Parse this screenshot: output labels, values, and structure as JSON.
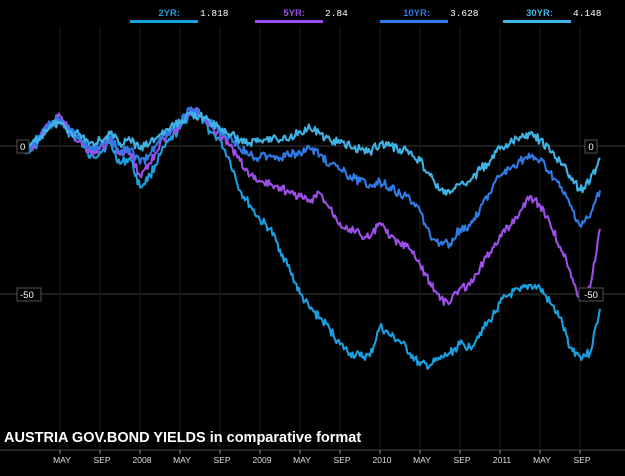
{
  "chart_data": {
    "type": "line",
    "title": "AUSTRIA GOV.BOND YIELDS in comparative format",
    "x_tick_labels": [
      "MAY",
      "SEP",
      "2008",
      "MAY",
      "SEP",
      "2009",
      "MAY",
      "SEP",
      "2010",
      "MAY",
      "SEP",
      "2011",
      "MAY",
      "SEP"
    ],
    "x_tick_positions": [
      "2007-05",
      "2007-09",
      "2008-01",
      "2008-05",
      "2008-09",
      "2009-01",
      "2009-05",
      "2009-09",
      "2010-01",
      "2010-05",
      "2010-09",
      "2011-01",
      "2011-05",
      "2011-09"
    ],
    "x_start": "2007-01",
    "x_end": "2011-12",
    "y_range": [
      -78,
      12
    ],
    "y_axis_labels_left": [
      0,
      -50
    ],
    "y_axis_labels_right": [
      0,
      -50
    ],
    "grid": true,
    "legend_placement": "top",
    "series": [
      {
        "name": "2YR:",
        "last_value": "1.818",
        "color": "#1a9fe0",
        "points": [
          [
            "2007-01",
            0
          ],
          [
            "2007-02",
            -2
          ],
          [
            "2007-03",
            2
          ],
          [
            "2007-04",
            7
          ],
          [
            "2007-05",
            9
          ],
          [
            "2007-06",
            4
          ],
          [
            "2007-07",
            2
          ],
          [
            "2007-08",
            -4
          ],
          [
            "2007-09",
            -2
          ],
          [
            "2007-10",
            1
          ],
          [
            "2007-11",
            -6
          ],
          [
            "2007-12",
            -4
          ],
          [
            "2008-01",
            -14
          ],
          [
            "2008-02",
            -10
          ],
          [
            "2008-03",
            -3
          ],
          [
            "2008-04",
            2
          ],
          [
            "2008-05",
            6
          ],
          [
            "2008-06",
            11
          ],
          [
            "2008-07",
            10
          ],
          [
            "2008-08",
            5
          ],
          [
            "2008-09",
            2
          ],
          [
            "2008-10",
            -5
          ],
          [
            "2008-11",
            -15
          ],
          [
            "2008-12",
            -20
          ],
          [
            "2009-01",
            -25
          ],
          [
            "2009-02",
            -28
          ],
          [
            "2009-03",
            -35
          ],
          [
            "2009-04",
            -42
          ],
          [
            "2009-05",
            -50
          ],
          [
            "2009-06",
            -55
          ],
          [
            "2009-07",
            -58
          ],
          [
            "2009-08",
            -62
          ],
          [
            "2009-09",
            -67
          ],
          [
            "2009-10",
            -70
          ],
          [
            "2009-11",
            -71
          ],
          [
            "2009-12",
            -71
          ],
          [
            "2010-01",
            -61
          ],
          [
            "2010-02",
            -64
          ],
          [
            "2010-03",
            -66
          ],
          [
            "2010-04",
            -70
          ],
          [
            "2010-05",
            -74
          ],
          [
            "2010-06",
            -74
          ],
          [
            "2010-07",
            -72
          ],
          [
            "2010-08",
            -70
          ],
          [
            "2010-09",
            -67
          ],
          [
            "2010-10",
            -68
          ],
          [
            "2010-11",
            -63
          ],
          [
            "2010-12",
            -59
          ],
          [
            "2011-01",
            -53
          ],
          [
            "2011-02",
            -50
          ],
          [
            "2011-03",
            -49
          ],
          [
            "2011-04",
            -47
          ],
          [
            "2011-05",
            -48
          ],
          [
            "2011-06",
            -53
          ],
          [
            "2011-07",
            -58
          ],
          [
            "2011-08",
            -68
          ],
          [
            "2011-09",
            -71
          ],
          [
            "2011-10",
            -70
          ],
          [
            "2011-11",
            -55
          ]
        ]
      },
      {
        "name": "5YR:",
        "last_value": "2.84",
        "color": "#9b4fe8",
        "points": [
          [
            "2007-01",
            0
          ],
          [
            "2007-02",
            -1
          ],
          [
            "2007-03",
            3
          ],
          [
            "2007-04",
            8
          ],
          [
            "2007-05",
            10
          ],
          [
            "2007-06",
            5
          ],
          [
            "2007-07",
            2
          ],
          [
            "2007-08",
            -2
          ],
          [
            "2007-09",
            -1
          ],
          [
            "2007-10",
            2
          ],
          [
            "2007-11",
            -3
          ],
          [
            "2007-12",
            -2
          ],
          [
            "2008-01",
            -10
          ],
          [
            "2008-02",
            -6
          ],
          [
            "2008-03",
            1
          ],
          [
            "2008-04",
            4
          ],
          [
            "2008-05",
            7
          ],
          [
            "2008-06",
            12
          ],
          [
            "2008-07",
            11
          ],
          [
            "2008-08",
            7
          ],
          [
            "2008-09",
            4
          ],
          [
            "2008-10",
            0
          ],
          [
            "2008-11",
            -5
          ],
          [
            "2008-12",
            -10
          ],
          [
            "2009-01",
            -12
          ],
          [
            "2009-02",
            -13
          ],
          [
            "2009-03",
            -14
          ],
          [
            "2009-04",
            -16
          ],
          [
            "2009-05",
            -17
          ],
          [
            "2009-06",
            -19
          ],
          [
            "2009-07",
            -16
          ],
          [
            "2009-08",
            -21
          ],
          [
            "2009-09",
            -26
          ],
          [
            "2009-10",
            -28
          ],
          [
            "2009-11",
            -30
          ],
          [
            "2009-12",
            -31
          ],
          [
            "2010-01",
            -26
          ],
          [
            "2010-02",
            -31
          ],
          [
            "2010-03",
            -33
          ],
          [
            "2010-04",
            -35
          ],
          [
            "2010-05",
            -40
          ],
          [
            "2010-06",
            -46
          ],
          [
            "2010-07",
            -52
          ],
          [
            "2010-08",
            -53
          ],
          [
            "2010-09",
            -48
          ],
          [
            "2010-10",
            -47
          ],
          [
            "2010-11",
            -41
          ],
          [
            "2010-12",
            -36
          ],
          [
            "2011-01",
            -30
          ],
          [
            "2011-02",
            -27
          ],
          [
            "2011-03",
            -22
          ],
          [
            "2011-04",
            -17
          ],
          [
            "2011-05",
            -20
          ],
          [
            "2011-06",
            -26
          ],
          [
            "2011-07",
            -34
          ],
          [
            "2011-08",
            -42
          ],
          [
            "2011-09",
            -52
          ],
          [
            "2011-10",
            -48
          ],
          [
            "2011-11",
            -28
          ]
        ]
      },
      {
        "name": "10YR:",
        "last_value": "3.628",
        "color": "#2f7be5",
        "points": [
          [
            "2007-01",
            0
          ],
          [
            "2007-02",
            -1
          ],
          [
            "2007-03",
            3
          ],
          [
            "2007-04",
            8
          ],
          [
            "2007-05",
            9
          ],
          [
            "2007-06",
            5
          ],
          [
            "2007-07",
            3
          ],
          [
            "2007-08",
            -1
          ],
          [
            "2007-09",
            0
          ],
          [
            "2007-10",
            3
          ],
          [
            "2007-11",
            -2
          ],
          [
            "2007-12",
            -1
          ],
          [
            "2008-01",
            -6
          ],
          [
            "2008-02",
            -3
          ],
          [
            "2008-03",
            3
          ],
          [
            "2008-04",
            5
          ],
          [
            "2008-05",
            8
          ],
          [
            "2008-06",
            12
          ],
          [
            "2008-07",
            11
          ],
          [
            "2008-08",
            8
          ],
          [
            "2008-09",
            5
          ],
          [
            "2008-10",
            3
          ],
          [
            "2008-11",
            -1
          ],
          [
            "2008-12",
            -3
          ],
          [
            "2009-01",
            -4
          ],
          [
            "2009-02",
            -3
          ],
          [
            "2009-03",
            -4
          ],
          [
            "2009-04",
            -3
          ],
          [
            "2009-05",
            -2
          ],
          [
            "2009-06",
            -1
          ],
          [
            "2009-07",
            -3
          ],
          [
            "2009-08",
            -6
          ],
          [
            "2009-09",
            -8
          ],
          [
            "2009-10",
            -10
          ],
          [
            "2009-11",
            -12
          ],
          [
            "2009-12",
            -13
          ],
          [
            "2010-01",
            -12
          ],
          [
            "2010-02",
            -14
          ],
          [
            "2010-03",
            -16
          ],
          [
            "2010-04",
            -18
          ],
          [
            "2010-05",
            -22
          ],
          [
            "2010-06",
            -30
          ],
          [
            "2010-07",
            -33
          ],
          [
            "2010-08",
            -33
          ],
          [
            "2010-09",
            -28
          ],
          [
            "2010-10",
            -27
          ],
          [
            "2010-11",
            -21
          ],
          [
            "2010-12",
            -16
          ],
          [
            "2011-01",
            -10
          ],
          [
            "2011-02",
            -8
          ],
          [
            "2011-03",
            -5
          ],
          [
            "2011-04",
            -4
          ],
          [
            "2011-05",
            -5
          ],
          [
            "2011-06",
            -9
          ],
          [
            "2011-07",
            -14
          ],
          [
            "2011-08",
            -20
          ],
          [
            "2011-09",
            -27
          ],
          [
            "2011-10",
            -24
          ],
          [
            "2011-11",
            -15
          ]
        ]
      },
      {
        "name": "30YR:",
        "last_value": "4.148",
        "color": "#3fb3e6",
        "points": [
          [
            "2007-01",
            0
          ],
          [
            "2007-02",
            0
          ],
          [
            "2007-03",
            3
          ],
          [
            "2007-04",
            7
          ],
          [
            "2007-05",
            8
          ],
          [
            "2007-06",
            5
          ],
          [
            "2007-07",
            4
          ],
          [
            "2007-08",
            1
          ],
          [
            "2007-09",
            2
          ],
          [
            "2007-10",
            4
          ],
          [
            "2007-11",
            1
          ],
          [
            "2007-12",
            2
          ],
          [
            "2008-01",
            -1
          ],
          [
            "2008-02",
            1
          ],
          [
            "2008-03",
            4
          ],
          [
            "2008-04",
            6
          ],
          [
            "2008-05",
            8
          ],
          [
            "2008-06",
            11
          ],
          [
            "2008-07",
            10
          ],
          [
            "2008-08",
            8
          ],
          [
            "2008-09",
            6
          ],
          [
            "2008-10",
            4
          ],
          [
            "2008-11",
            2
          ],
          [
            "2008-12",
            1
          ],
          [
            "2009-01",
            2
          ],
          [
            "2009-02",
            3
          ],
          [
            "2009-03",
            2
          ],
          [
            "2009-04",
            3
          ],
          [
            "2009-05",
            5
          ],
          [
            "2009-06",
            6
          ],
          [
            "2009-07",
            4
          ],
          [
            "2009-08",
            2
          ],
          [
            "2009-09",
            1
          ],
          [
            "2009-10",
            0
          ],
          [
            "2009-11",
            -1
          ],
          [
            "2009-12",
            -2
          ],
          [
            "2010-01",
            1
          ],
          [
            "2010-02",
            0
          ],
          [
            "2010-03",
            -1
          ],
          [
            "2010-04",
            -2
          ],
          [
            "2010-05",
            -5
          ],
          [
            "2010-06",
            -10
          ],
          [
            "2010-07",
            -15
          ],
          [
            "2010-08",
            -16
          ],
          [
            "2010-09",
            -13
          ],
          [
            "2010-10",
            -12
          ],
          [
            "2010-11",
            -8
          ],
          [
            "2010-12",
            -5
          ],
          [
            "2011-01",
            -1
          ],
          [
            "2011-02",
            1
          ],
          [
            "2011-03",
            3
          ],
          [
            "2011-04",
            4
          ],
          [
            "2011-05",
            2
          ],
          [
            "2011-06",
            -2
          ],
          [
            "2011-07",
            -5
          ],
          [
            "2011-08",
            -10
          ],
          [
            "2011-09",
            -15
          ],
          [
            "2011-10",
            -12
          ],
          [
            "2011-11",
            -4
          ]
        ]
      }
    ]
  }
}
